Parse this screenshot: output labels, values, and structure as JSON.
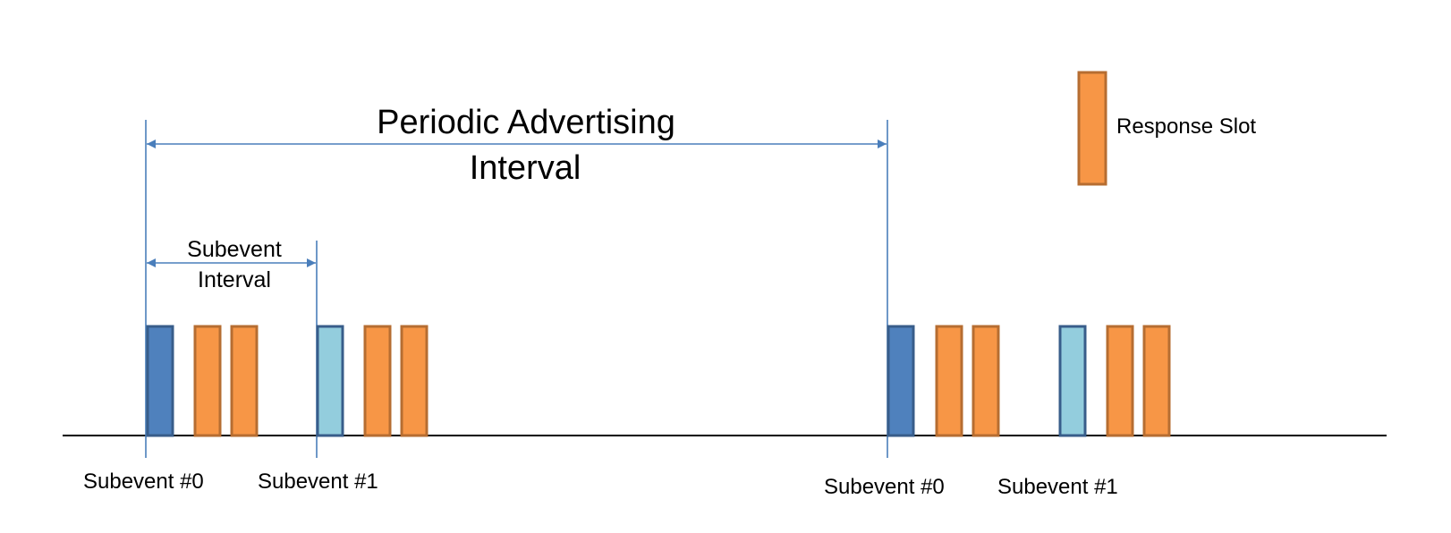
{
  "title": {
    "line1": "Periodic Advertising",
    "line2": "Interval"
  },
  "subevent_interval": {
    "line1": "Subevent",
    "line2": "Interval"
  },
  "legend": {
    "label": "Response Slot",
    "color": "#f79646"
  },
  "labels": {
    "subevent0_a": "Subevent #0",
    "subevent1_a": "Subevent #1",
    "subevent0_b": "Subevent #0",
    "subevent1_b": "Subevent #1"
  },
  "colors": {
    "line_blue": "#4a7ebb",
    "subevent0_fill": "#4f81bd",
    "subevent0_stroke": "#385d8a",
    "subevent1_fill": "#93cddd",
    "subevent1_stroke": "#385d8a",
    "response_fill": "#f79646",
    "response_stroke": "#b66d31",
    "baseline": "#000000"
  }
}
